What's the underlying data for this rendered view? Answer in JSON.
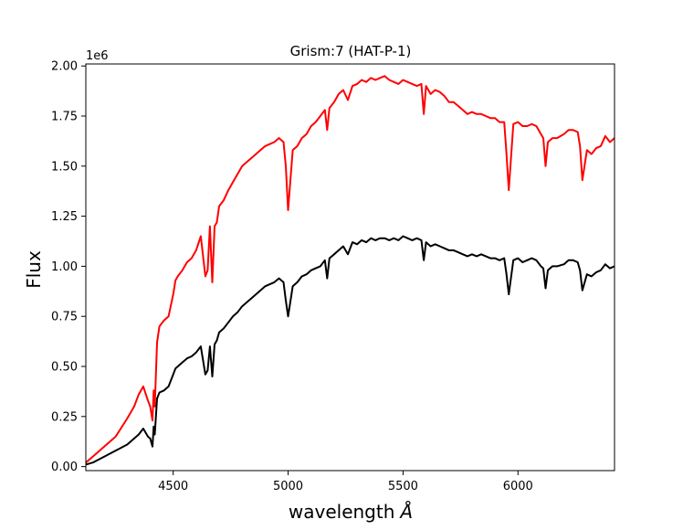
{
  "chart_data": {
    "type": "line",
    "title": "Grism:7 (HAT-P-1)",
    "xlabel": "wavelength",
    "xlabel_unit": "Å",
    "ylabel": "Flux",
    "y_multiplier_label": "1e6",
    "xlim": [
      4120,
      6420
    ],
    "ylim": [
      -0.02,
      2.01
    ],
    "x_ticks": [
      4500,
      5000,
      5500,
      6000
    ],
    "x_tick_labels": [
      "4500",
      "5000",
      "5500",
      "6000"
    ],
    "y_ticks": [
      0.0,
      0.25,
      0.5,
      0.75,
      1.0,
      1.25,
      1.5,
      1.75,
      2.0
    ],
    "y_tick_labels": [
      "0.00",
      "0.25",
      "0.50",
      "0.75",
      "1.00",
      "1.25",
      "1.50",
      "1.75",
      "2.00"
    ],
    "grid": false,
    "legend": "none",
    "series": [
      {
        "color": "#ff0000",
        "x": [
          4120,
          4150,
          4200,
          4250,
          4300,
          4330,
          4350,
          4370,
          4390,
          4400,
          4410,
          4415,
          4420,
          4430,
          4440,
          4460,
          4480,
          4500,
          4510,
          4520,
          4540,
          4560,
          4580,
          4600,
          4620,
          4640,
          4650,
          4660,
          4670,
          4680,
          4690,
          4700,
          4720,
          4740,
          4760,
          4780,
          4800,
          4820,
          4840,
          4860,
          4880,
          4900,
          4920,
          4940,
          4960,
          4980,
          4990,
          5000,
          5020,
          5040,
          5060,
          5080,
          5100,
          5120,
          5140,
          5160,
          5170,
          5180,
          5200,
          5220,
          5240,
          5260,
          5280,
          5300,
          5320,
          5340,
          5360,
          5380,
          5400,
          5420,
          5440,
          5460,
          5480,
          5500,
          5520,
          5540,
          5560,
          5580,
          5590,
          5600,
          5620,
          5640,
          5660,
          5680,
          5700,
          5720,
          5740,
          5760,
          5780,
          5800,
          5820,
          5840,
          5860,
          5880,
          5900,
          5920,
          5940,
          5950,
          5960,
          5980,
          6000,
          6020,
          6040,
          6060,
          6080,
          6100,
          6110,
          6120,
          6130,
          6150,
          6170,
          6200,
          6220,
          6240,
          6260,
          6270,
          6280,
          6300,
          6320,
          6340,
          6360,
          6380,
          6400,
          6420
        ],
        "y": [
          0.02,
          0.05,
          0.1,
          0.15,
          0.24,
          0.3,
          0.36,
          0.4,
          0.33,
          0.3,
          0.23,
          0.38,
          0.3,
          0.62,
          0.7,
          0.73,
          0.75,
          0.86,
          0.93,
          0.95,
          0.98,
          1.02,
          1.04,
          1.08,
          1.15,
          0.95,
          0.98,
          1.2,
          0.92,
          1.2,
          1.22,
          1.3,
          1.33,
          1.38,
          1.42,
          1.46,
          1.5,
          1.52,
          1.54,
          1.56,
          1.58,
          1.6,
          1.61,
          1.62,
          1.64,
          1.62,
          1.5,
          1.28,
          1.58,
          1.6,
          1.64,
          1.66,
          1.7,
          1.72,
          1.75,
          1.78,
          1.68,
          1.79,
          1.82,
          1.86,
          1.88,
          1.83,
          1.9,
          1.91,
          1.93,
          1.92,
          1.94,
          1.93,
          1.94,
          1.95,
          1.93,
          1.92,
          1.91,
          1.93,
          1.92,
          1.91,
          1.9,
          1.91,
          1.76,
          1.9,
          1.86,
          1.88,
          1.87,
          1.85,
          1.82,
          1.82,
          1.8,
          1.78,
          1.76,
          1.77,
          1.76,
          1.76,
          1.75,
          1.74,
          1.74,
          1.72,
          1.72,
          1.56,
          1.38,
          1.71,
          1.72,
          1.7,
          1.7,
          1.71,
          1.7,
          1.66,
          1.64,
          1.5,
          1.62,
          1.64,
          1.64,
          1.66,
          1.68,
          1.68,
          1.67,
          1.6,
          1.43,
          1.58,
          1.56,
          1.59,
          1.6,
          1.65,
          1.62,
          1.64
        ]
      },
      {
        "color": "#000000",
        "x": [
          4120,
          4150,
          4200,
          4250,
          4300,
          4330,
          4350,
          4370,
          4390,
          4400,
          4410,
          4415,
          4420,
          4430,
          4440,
          4460,
          4480,
          4500,
          4510,
          4520,
          4540,
          4560,
          4580,
          4600,
          4620,
          4640,
          4650,
          4660,
          4670,
          4680,
          4690,
          4700,
          4720,
          4740,
          4760,
          4780,
          4800,
          4820,
          4840,
          4860,
          4880,
          4900,
          4920,
          4940,
          4960,
          4980,
          4990,
          5000,
          5020,
          5040,
          5060,
          5080,
          5100,
          5120,
          5140,
          5160,
          5170,
          5180,
          5200,
          5220,
          5240,
          5260,
          5280,
          5300,
          5320,
          5340,
          5360,
          5380,
          5400,
          5420,
          5440,
          5460,
          5480,
          5500,
          5520,
          5540,
          5560,
          5580,
          5590,
          5600,
          5620,
          5640,
          5660,
          5680,
          5700,
          5720,
          5740,
          5760,
          5780,
          5800,
          5820,
          5840,
          5860,
          5880,
          5900,
          5920,
          5940,
          5950,
          5960,
          5980,
          6000,
          6020,
          6040,
          6060,
          6080,
          6100,
          6110,
          6120,
          6130,
          6150,
          6170,
          6200,
          6220,
          6240,
          6260,
          6270,
          6280,
          6300,
          6320,
          6340,
          6360,
          6380,
          6400,
          6420
        ],
        "y": [
          0.01,
          0.02,
          0.05,
          0.08,
          0.11,
          0.14,
          0.16,
          0.19,
          0.15,
          0.14,
          0.1,
          0.2,
          0.16,
          0.34,
          0.37,
          0.38,
          0.4,
          0.46,
          0.49,
          0.5,
          0.52,
          0.54,
          0.55,
          0.57,
          0.6,
          0.46,
          0.48,
          0.6,
          0.45,
          0.61,
          0.63,
          0.67,
          0.69,
          0.72,
          0.75,
          0.77,
          0.8,
          0.82,
          0.84,
          0.86,
          0.88,
          0.9,
          0.91,
          0.92,
          0.94,
          0.92,
          0.83,
          0.75,
          0.9,
          0.92,
          0.95,
          0.96,
          0.98,
          0.99,
          1.0,
          1.03,
          0.94,
          1.04,
          1.06,
          1.08,
          1.1,
          1.06,
          1.12,
          1.11,
          1.13,
          1.12,
          1.14,
          1.13,
          1.14,
          1.14,
          1.13,
          1.14,
          1.13,
          1.15,
          1.14,
          1.13,
          1.14,
          1.13,
          1.03,
          1.12,
          1.1,
          1.11,
          1.1,
          1.09,
          1.08,
          1.08,
          1.07,
          1.06,
          1.05,
          1.06,
          1.05,
          1.06,
          1.05,
          1.04,
          1.04,
          1.03,
          1.04,
          0.96,
          0.86,
          1.03,
          1.04,
          1.02,
          1.03,
          1.04,
          1.03,
          1.0,
          0.99,
          0.89,
          0.98,
          1.0,
          1.0,
          1.01,
          1.03,
          1.03,
          1.02,
          0.98,
          0.88,
          0.96,
          0.95,
          0.97,
          0.98,
          1.01,
          0.99,
          1.0
        ]
      }
    ]
  }
}
